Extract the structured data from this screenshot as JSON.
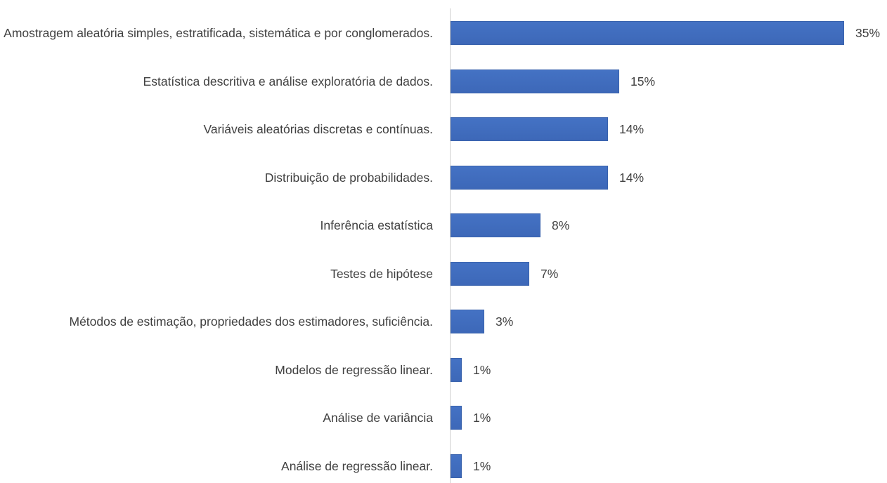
{
  "chart_data": {
    "type": "hbar",
    "categories": [
      "Amostragem aleatória simples, estratificada, sistemática e por conglomerados.",
      "Estatística descritiva e análise exploratória de dados.",
      "Variáveis aleatórias discretas e contínuas.",
      "Distribuição de probabilidades.",
      "Inferência estatística",
      "Testes de hipótese",
      "Métodos de estimação, propriedades dos estimadores, suficiência.",
      "Modelos de regressão linear.",
      "Análise de variância",
      "Análise de regressão linear."
    ],
    "values": [
      35,
      15,
      14,
      14,
      8,
      7,
      3,
      1,
      1,
      1
    ],
    "value_labels": [
      "35%",
      "15%",
      "14%",
      "14%",
      "8%",
      "7%",
      "3%",
      "1%",
      "1%",
      "1%"
    ],
    "color": "#4472c4"
  }
}
